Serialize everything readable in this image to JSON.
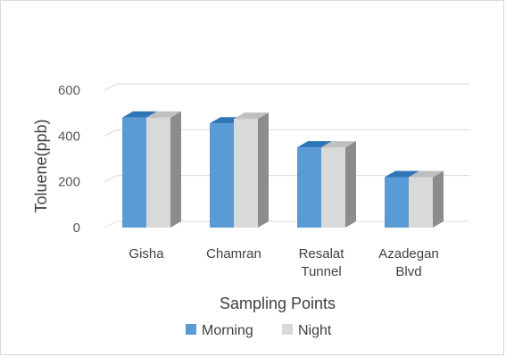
{
  "chart_data": {
    "type": "bar",
    "categories": [
      "Gisha",
      "Chamran",
      "Resalat Tunnel",
      "Azadegan Blvd"
    ],
    "category_lines": [
      [
        "Gisha"
      ],
      [
        "Chamran"
      ],
      [
        "Resalat",
        "Tunnel"
      ],
      [
        "Azadegan",
        "Blvd"
      ]
    ],
    "series": [
      {
        "name": "Morning",
        "values": [
          480,
          455,
          350,
          220
        ]
      },
      {
        "name": "Night",
        "values": [
          480,
          475,
          350,
          220
        ]
      }
    ],
    "xlabel": "Sampling Points",
    "ylabel": "Toluene(ppb)",
    "ylim": [
      0,
      600
    ],
    "yticks": [
      "0",
      "200",
      "400",
      "600"
    ],
    "grid": true,
    "legend_position": "bottom",
    "style": "3d-clustered-column",
    "colors": {
      "morning": "#5b9bd5",
      "morning_top": "#2e75b6",
      "night": "#d9d9d9",
      "night_top": "#bfbfbf",
      "side": "#8c8c8c",
      "grid": "#d9d9d9"
    }
  }
}
